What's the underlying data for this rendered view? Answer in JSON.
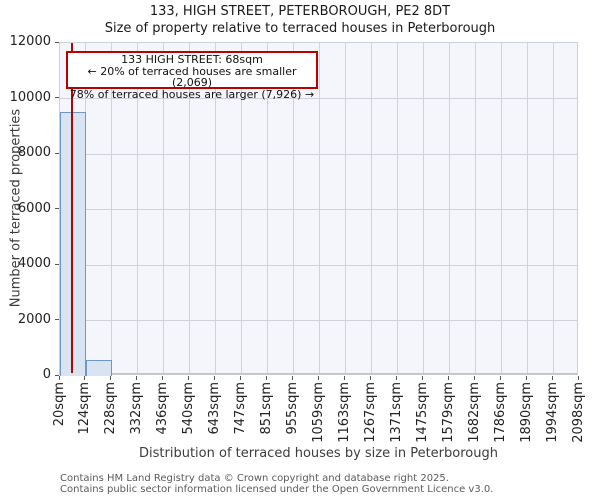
{
  "title": "133, HIGH STREET, PETERBOROUGH, PE2 8DT",
  "subtitle": "Size of property relative to terraced houses in Peterborough",
  "annotation": {
    "line1": "133 HIGH STREET: 68sqm",
    "line2": "← 20% of terraced houses are smaller (2,069)",
    "line3": "78% of terraced houses are larger (7,926) →"
  },
  "footer": {
    "line1": "Contains HM Land Registry data © Crown copyright and database right 2025.",
    "line2": "Contains public sector information licensed under the Open Government Licence v3.0."
  },
  "chart_data": {
    "type": "bar",
    "title": "133, HIGH STREET, PETERBOROUGH, PE2 8DT",
    "subtitle": "Size of property relative to terraced houses in Peterborough",
    "xlabel": "Distribution of terraced houses by size in Peterborough",
    "ylabel": "Number of terraced properties",
    "bin_edges_sqm": [
      20,
      124,
      228,
      332,
      436,
      540,
      643,
      747,
      851,
      955,
      1059,
      1163,
      1267,
      1371,
      1475,
      1579,
      1682,
      1786,
      1890,
      1994,
      2098
    ],
    "x_tick_labels": [
      "20sqm",
      "124sqm",
      "228sqm",
      "332sqm",
      "436sqm",
      "540sqm",
      "643sqm",
      "747sqm",
      "851sqm",
      "955sqm",
      "1059sqm",
      "1163sqm",
      "1267sqm",
      "1371sqm",
      "1475sqm",
      "1579sqm",
      "1682sqm",
      "1786sqm",
      "1890sqm",
      "1994sqm",
      "2098sqm"
    ],
    "values": [
      9500,
      575,
      0,
      0,
      0,
      0,
      0,
      0,
      0,
      0,
      0,
      0,
      0,
      0,
      0,
      0,
      0,
      0,
      0,
      0
    ],
    "y_tick_labels": [
      "0",
      "2000",
      "4000",
      "6000",
      "8000",
      "10000",
      "12000"
    ],
    "ylim": [
      0,
      12000
    ],
    "grid": true,
    "legend": "none",
    "marker": {
      "value_sqm": 68,
      "label": "133 HIGH STREET: 68sqm",
      "pct_smaller": 20,
      "count_smaller": 2069,
      "pct_larger": 78,
      "count_larger": 7926
    },
    "colors": {
      "bar_fill": "#d9e4f3",
      "bar_stroke": "#6e96c8",
      "marker_line": "#bb0000",
      "annotation_border": "#bb0000",
      "plot_bg": "#f4f6fc",
      "grid": "#d0d2da"
    }
  }
}
